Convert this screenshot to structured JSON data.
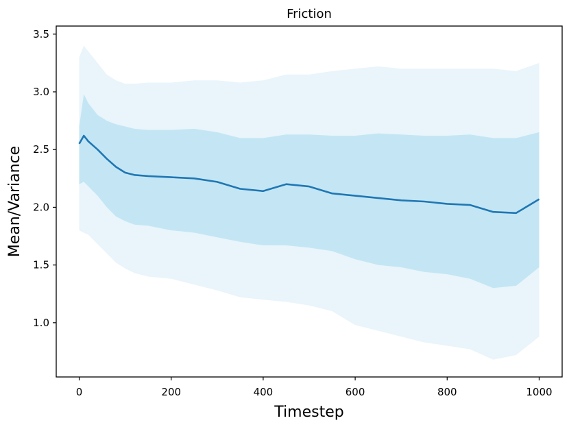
{
  "chart_data": {
    "type": "line",
    "title": "Friction",
    "xlabel": "Timestep",
    "ylabel": "Mean/Variance",
    "xlim": [
      -50,
      1050
    ],
    "ylim": [
      0.53,
      3.57
    ],
    "xticks": [
      0,
      200,
      400,
      600,
      800,
      1000
    ],
    "yticks": [
      1.0,
      1.5,
      2.0,
      2.5,
      3.0,
      3.5
    ],
    "xtick_labels": [
      "0",
      "200",
      "400",
      "600",
      "800",
      "1000"
    ],
    "ytick_labels": [
      "1.0",
      "1.5",
      "2.0",
      "2.5",
      "3.0",
      "3.5"
    ],
    "grid": false,
    "colors": {
      "mean_line": "#1f77b4",
      "inner_band": "#c4e6f4",
      "outer_band": "#e9f5fb"
    },
    "x": [
      0,
      10,
      20,
      40,
      60,
      80,
      100,
      120,
      150,
      200,
      250,
      300,
      350,
      400,
      450,
      500,
      550,
      600,
      650,
      700,
      750,
      800,
      850,
      900,
      950,
      1000
    ],
    "series": [
      {
        "role": "mean",
        "values": [
          2.55,
          2.62,
          2.57,
          2.5,
          2.42,
          2.35,
          2.3,
          2.28,
          2.27,
          2.26,
          2.25,
          2.22,
          2.16,
          2.14,
          2.2,
          2.18,
          2.12,
          2.1,
          2.08,
          2.06,
          2.05,
          2.03,
          2.02,
          1.96,
          1.95,
          2.07
        ]
      },
      {
        "role": "inner_band_upper",
        "values": [
          2.7,
          2.98,
          2.9,
          2.8,
          2.75,
          2.72,
          2.7,
          2.68,
          2.67,
          2.67,
          2.68,
          2.65,
          2.6,
          2.6,
          2.63,
          2.63,
          2.62,
          2.62,
          2.64,
          2.63,
          2.62,
          2.62,
          2.63,
          2.6,
          2.6,
          2.65
        ]
      },
      {
        "role": "inner_band_lower",
        "values": [
          2.2,
          2.22,
          2.18,
          2.1,
          2.0,
          1.92,
          1.88,
          1.85,
          1.84,
          1.8,
          1.78,
          1.74,
          1.7,
          1.67,
          1.67,
          1.65,
          1.62,
          1.55,
          1.5,
          1.48,
          1.44,
          1.42,
          1.38,
          1.3,
          1.32,
          1.48
        ]
      },
      {
        "role": "outer_band_upper",
        "values": [
          3.3,
          3.4,
          3.35,
          3.25,
          3.15,
          3.1,
          3.07,
          3.07,
          3.08,
          3.08,
          3.1,
          3.1,
          3.08,
          3.1,
          3.15,
          3.15,
          3.18,
          3.2,
          3.22,
          3.2,
          3.2,
          3.2,
          3.2,
          3.2,
          3.18,
          3.25
        ]
      },
      {
        "role": "outer_band_lower",
        "values": [
          1.8,
          1.78,
          1.76,
          1.68,
          1.6,
          1.52,
          1.47,
          1.43,
          1.4,
          1.38,
          1.33,
          1.28,
          1.22,
          1.2,
          1.18,
          1.15,
          1.1,
          0.98,
          0.93,
          0.88,
          0.83,
          0.8,
          0.77,
          0.68,
          0.72,
          0.88
        ]
      }
    ]
  }
}
